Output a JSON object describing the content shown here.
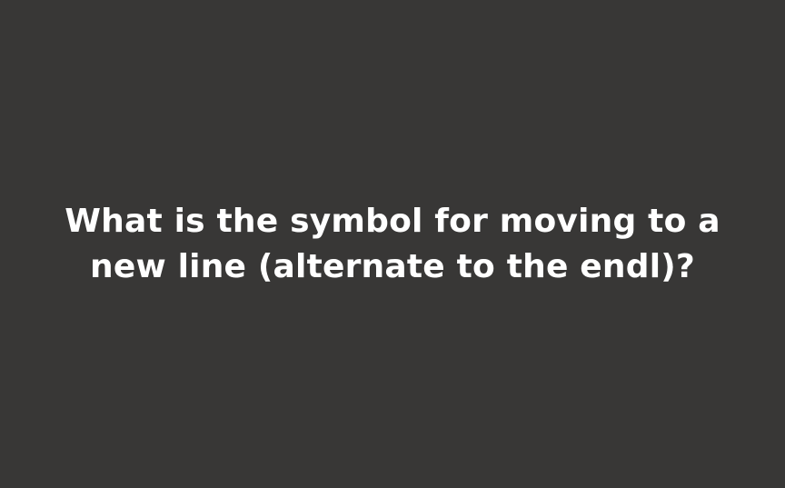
{
  "slide": {
    "background_color": "#383736",
    "text_color": "#ffffff",
    "question_lines": [
      "What is the symbol for moving to a",
      "new line (alternate to the endl)?"
    ]
  }
}
